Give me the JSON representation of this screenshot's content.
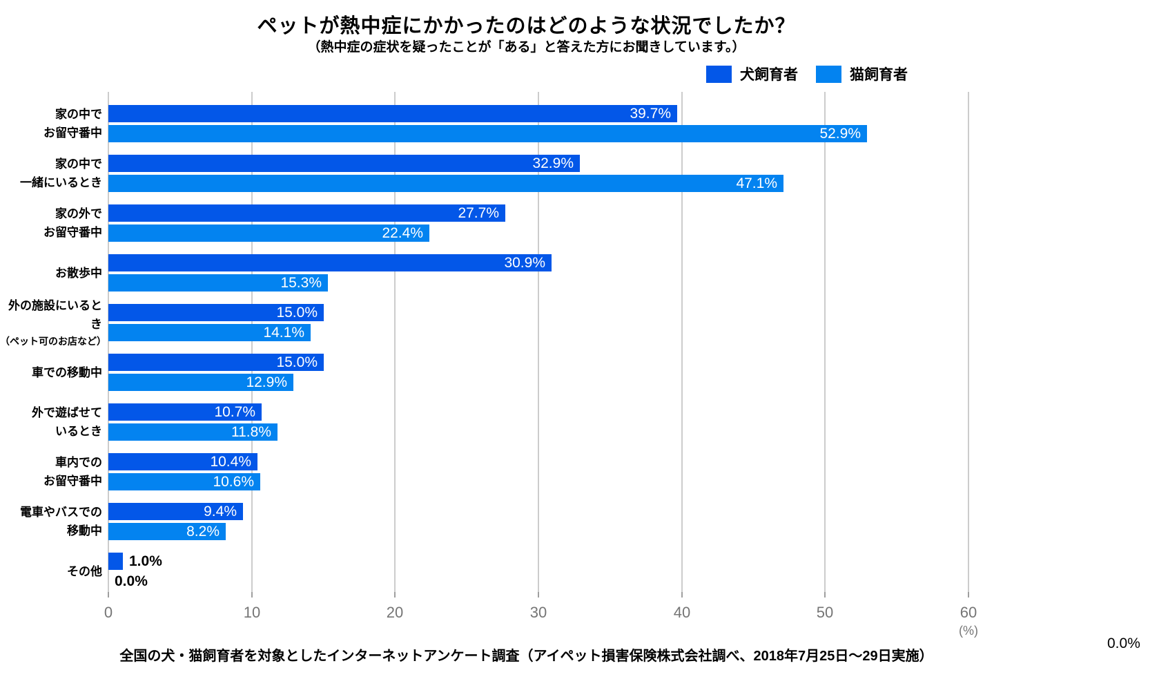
{
  "footer": "全国の犬・猫飼育者を対象としたインターネットアンケート調査（アイペット損害保険株式会社調べ、2018年7月25日〜29日実施）",
  "stray_label": "0.0%",
  "colors": {
    "dog_bar": "#0357E8",
    "cat_bar": "#0383F0",
    "gridline": "#CCCCCC",
    "tick_text": "#757575",
    "value_label_inside": "#FFFFFF",
    "value_label_outside": "#000000"
  },
  "legend": {
    "items": [
      {
        "label": "犬飼育者",
        "color": "#0357E8"
      },
      {
        "label": "猫飼育者",
        "color": "#0383F0"
      }
    ]
  },
  "chart_data": {
    "type": "bar",
    "orientation": "horizontal",
    "title": "ペットが熱中症にかかったのはどのような状況でしたか？",
    "subtitle": "（熱中症の症状を疑ったことが「ある」と答えた方にお聞きしています。）",
    "categories": [
      [
        "家の中で",
        "お留守番中"
      ],
      [
        "家の中で",
        "一緒にいるとき"
      ],
      [
        "家の外で",
        "お留守番中"
      ],
      [
        "お散歩中"
      ],
      [
        "外の施設にいるとき",
        "（ペット可のお店など）"
      ],
      [
        "車での移動中"
      ],
      [
        "外で遊ばせて",
        "いるとき"
      ],
      [
        "車内での",
        "お留守番中"
      ],
      [
        "電車やバスでの",
        "移動中"
      ],
      [
        "その他"
      ]
    ],
    "series": [
      {
        "name": "犬飼育者",
        "color": "#0357E8",
        "values": [
          39.7,
          32.9,
          27.7,
          30.9,
          15.0,
          15.0,
          10.7,
          10.4,
          9.4,
          1.0
        ]
      },
      {
        "name": "猫飼育者",
        "color": "#0383F0",
        "values": [
          52.9,
          47.1,
          22.4,
          15.3,
          14.1,
          12.9,
          11.8,
          10.6,
          8.2,
          0.0
        ]
      }
    ],
    "value_suffix": "%",
    "xlim": [
      0,
      60
    ],
    "xticks": [
      0,
      10,
      20,
      30,
      40,
      50,
      60
    ],
    "x_unit": "(%)",
    "grid": true,
    "legend_position": "top-right"
  }
}
